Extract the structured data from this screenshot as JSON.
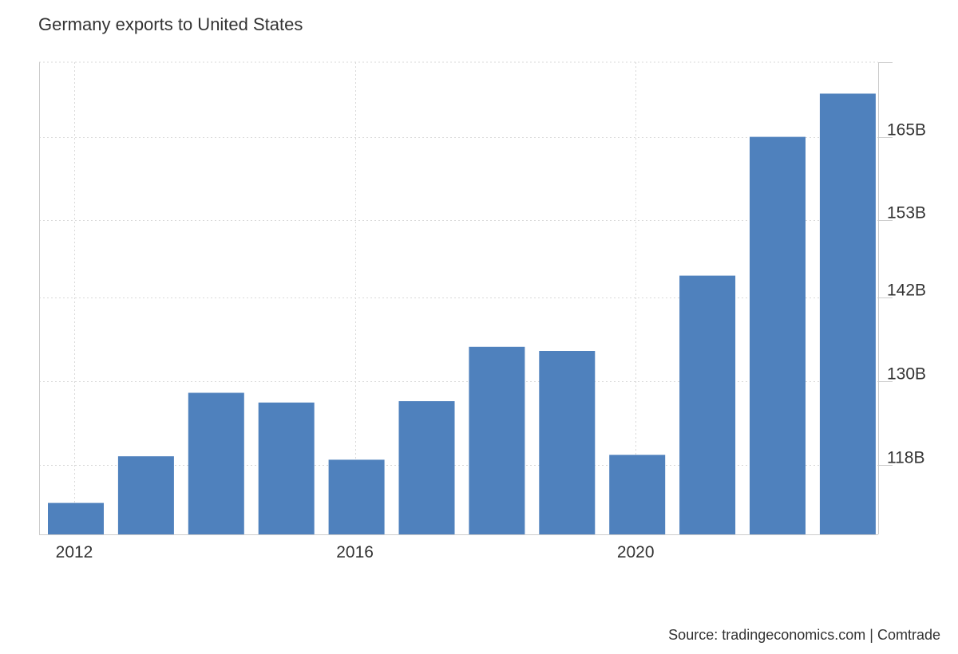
{
  "title": "Germany exports to United States",
  "source": "Source: tradingeconomics.com | Comtrade",
  "colors": {
    "bar": "#4f81bd",
    "grid": "#d9d9d9",
    "axis": "#cccccc",
    "text": "#333333"
  },
  "chart_data": {
    "type": "bar",
    "title": "Germany exports to United States",
    "xlabel": "",
    "ylabel": "",
    "categories": [
      "2012",
      "2013",
      "2014",
      "2015",
      "2016",
      "2017",
      "2018",
      "2019",
      "2020",
      "2021",
      "2022",
      "2023"
    ],
    "x_tick_labels": [
      "2012",
      "2016",
      "2020"
    ],
    "values": [
      112.5,
      119.2,
      128.3,
      126.9,
      118.7,
      127.1,
      134.9,
      134.3,
      119.4,
      145.1,
      165.0,
      171.2
    ],
    "y_ticks": [
      118,
      130,
      142,
      153,
      165
    ],
    "y_tick_labels": [
      "118B",
      "130B",
      "142B",
      "153B",
      "165B"
    ],
    "ylim": [
      108,
      175.7
    ],
    "grid": true,
    "y_axis_side": "right",
    "legend": "none"
  }
}
